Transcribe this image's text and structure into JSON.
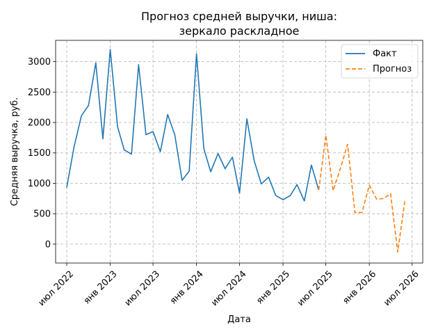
{
  "chart_data": {
    "type": "line",
    "title": [
      "Прогноз средней выручки, ниша:",
      "зеркало раскладное"
    ],
    "xlabel": "Дата",
    "ylabel": "Средняя выручка, руб.",
    "x_ticks": [
      "2022-07",
      "2023-01",
      "2023-07",
      "2024-01",
      "2024-07",
      "2025-01",
      "2025-07",
      "2026-01",
      "2026-07"
    ],
    "x_tick_labels": [
      "июл 2022",
      "янв 2023",
      "июл 2023",
      "янв 2024",
      "июл 2024",
      "янв 2025",
      "июл 2025",
      "янв 2026",
      "июл 2026"
    ],
    "y_ticks": [
      0,
      500,
      1000,
      1500,
      2000,
      2500,
      3000
    ],
    "y_tick_labels": [
      "0",
      "500",
      "1000",
      "1500",
      "2000",
      "2500",
      "3000"
    ],
    "xlim": [
      "2022-05-15",
      "2026-08-15"
    ],
    "ylim": [
      -310,
      3350
    ],
    "grid": true,
    "legend_position": "top-right",
    "series": [
      {
        "name": "Факт",
        "style": "solid",
        "color": "#1f77b4",
        "x": [
          "2022-07",
          "2022-08",
          "2022-09",
          "2022-10",
          "2022-11",
          "2022-12",
          "2023-01",
          "2023-02",
          "2023-03",
          "2023-04",
          "2023-05",
          "2023-06",
          "2023-07",
          "2023-08",
          "2023-09",
          "2023-10",
          "2023-11",
          "2023-12",
          "2024-01",
          "2024-02",
          "2024-03",
          "2024-04",
          "2024-05",
          "2024-06",
          "2024-07",
          "2024-08",
          "2024-09",
          "2024-10",
          "2024-11",
          "2024-12",
          "2025-01",
          "2025-02",
          "2025-03",
          "2025-04",
          "2025-05",
          "2025-06"
        ],
        "values": [
          930,
          1600,
          2110,
          2280,
          2980,
          1730,
          3200,
          1930,
          1550,
          1480,
          2950,
          1800,
          1850,
          1520,
          2130,
          1800,
          1050,
          1200,
          3130,
          1570,
          1190,
          1490,
          1240,
          1430,
          840,
          2060,
          1370,
          990,
          1100,
          800,
          730,
          800,
          980,
          710,
          1300,
          890
        ]
      },
      {
        "name": "Прогноз",
        "style": "dashed",
        "color": "#ff7f0e",
        "x": [
          "2025-06",
          "2025-07",
          "2025-08",
          "2025-09",
          "2025-10",
          "2025-11",
          "2025-12",
          "2026-01",
          "2026-02",
          "2026-03",
          "2026-04",
          "2026-05",
          "2026-06"
        ],
        "values": [
          890,
          1790,
          880,
          1250,
          1640,
          520,
          520,
          970,
          740,
          750,
          830,
          -130,
          730
        ]
      }
    ]
  }
}
